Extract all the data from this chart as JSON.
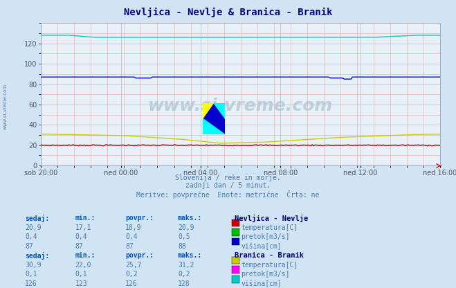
{
  "title": "Nevljica - Nevlje & Branica - Branik",
  "title_color": "#000080",
  "bg_color": "#d0e4f4",
  "plot_bg_color": "#e8f0f8",
  "grid_color_major": "#b0b8c8",
  "grid_color_minor": "#f0a0a0",
  "xlabel_ticks": [
    "sob 20:00",
    "ned 00:00",
    "ned 04:00",
    "ned 08:00",
    "ned 12:00",
    "ned 16:00"
  ],
  "ylim": [
    0,
    140
  ],
  "yticks": [
    0,
    20,
    40,
    60,
    80,
    100,
    120
  ],
  "n_points": 288,
  "watermark": "www.si-vreme.com",
  "subtitle_lines": [
    "Slovenija / reke in morje.",
    "zadnji dan / 5 minut.",
    "Meritve: povprečne  Enote: metrične  Črta: ne"
  ],
  "colors": {
    "nevljica_temp": "#cc0000",
    "nevljica_pretok": "#00bb00",
    "nevljica_visina": "#0000cc",
    "branica_temp": "#cccc00",
    "branica_pretok": "#ff00ff",
    "branica_visina": "#00cccc"
  },
  "nev_table": {
    "headers": [
      "sedaj:",
      "min.:",
      "povpr.:",
      "maks.:"
    ],
    "title": "Nevljica - Nevlje",
    "rows": [
      {
        "vals": [
          "20,9",
          "17,1",
          "18,9",
          "20,9"
        ],
        "label": "temperatura[C]",
        "color": "#cc0000"
      },
      {
        "vals": [
          "0,4",
          "0,4",
          "0,4",
          "0,5"
        ],
        "label": "pretok[m3/s]",
        "color": "#00bb00"
      },
      {
        "vals": [
          "87",
          "87",
          "87",
          "88"
        ],
        "label": "višina[cm]",
        "color": "#0000cc"
      }
    ]
  },
  "br_table": {
    "headers": [
      "sedaj:",
      "min.:",
      "povpr.:",
      "maks.:"
    ],
    "title": "Branica - Branik",
    "rows": [
      {
        "vals": [
          "30,9",
          "22,0",
          "25,7",
          "31,2"
        ],
        "label": "temperatura[C]",
        "color": "#cccc00"
      },
      {
        "vals": [
          "0,1",
          "0,1",
          "0,2",
          "0,2"
        ],
        "label": "pretok[m3/s]",
        "color": "#ff00ff"
      },
      {
        "vals": [
          "126",
          "123",
          "126",
          "128"
        ],
        "label": "višina[cm]",
        "color": "#00cccc"
      }
    ]
  }
}
